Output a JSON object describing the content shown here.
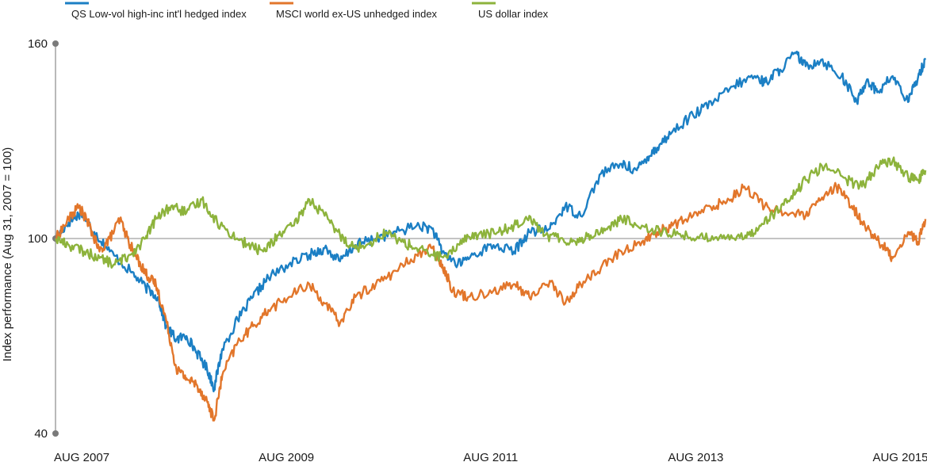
{
  "chart_data": {
    "type": "line",
    "title": "",
    "xlabel": "",
    "ylabel": "Index performance (Aug 31, 2007 = 100)",
    "ylim": [
      40,
      160
    ],
    "yticks": [
      40,
      100,
      160
    ],
    "xlim": [
      2007.67,
      2016.17
    ],
    "xticks": [
      {
        "label": "AUG 2007",
        "x": 2007.67
      },
      {
        "label": "AUG 2009",
        "x": 2009.67
      },
      {
        "label": "AUG 2011",
        "x": 2011.67
      },
      {
        "label": "AUG 2013",
        "x": 2013.67
      },
      {
        "label": "AUG 2015",
        "x": 2015.67
      }
    ],
    "reference_line": 100,
    "grid": false,
    "legend_position": "top-left",
    "series": [
      {
        "name": "QS Low-vol high-inc int'l hedged index",
        "color": "#1b7fc4",
        "x": [
          2007.67,
          2007.8,
          2007.92,
          2008.05,
          2008.2,
          2008.4,
          2008.55,
          2008.67,
          2008.75,
          2008.85,
          2008.95,
          2009.05,
          2009.15,
          2009.22,
          2009.3,
          2009.45,
          2009.6,
          2009.75,
          2009.95,
          2010.15,
          2010.3,
          2010.45,
          2010.6,
          2010.8,
          2011.0,
          2011.2,
          2011.35,
          2011.45,
          2011.6,
          2011.75,
          2011.95,
          2012.15,
          2012.3,
          2012.5,
          2012.65,
          2012.8,
          2013.0,
          2013.2,
          2013.35,
          2013.45,
          2013.55,
          2013.7,
          2013.9,
          2014.1,
          2014.3,
          2014.5,
          2014.6,
          2014.75,
          2014.9,
          2015.0,
          2015.15,
          2015.35,
          2015.5,
          2015.6,
          2015.7,
          2015.85,
          2016.0,
          2016.1,
          2016.17
        ],
        "values": [
          100,
          105,
          108,
          102,
          96,
          90,
          85,
          82,
          73,
          69,
          70,
          65,
          60,
          54,
          66,
          75,
          82,
          88,
          92,
          95,
          97,
          93,
          98,
          100,
          102,
          104,
          103,
          96,
          92,
          95,
          98,
          96,
          102,
          103,
          110,
          107,
          120,
          123,
          121,
          125,
          128,
          133,
          138,
          142,
          147,
          150,
          148,
          152,
          157,
          153,
          155,
          150,
          142,
          149,
          145,
          150,
          142,
          150,
          155
        ]
      },
      {
        "name": "MSCI world ex-US unhedged index",
        "color": "#e2762b",
        "x": [
          2007.67,
          2007.8,
          2007.9,
          2008.0,
          2008.1,
          2008.2,
          2008.3,
          2008.4,
          2008.5,
          2008.58,
          2008.65,
          2008.75,
          2008.85,
          2008.95,
          2009.05,
          2009.15,
          2009.22,
          2009.3,
          2009.45,
          2009.6,
          2009.75,
          2009.95,
          2010.15,
          2010.3,
          2010.45,
          2010.6,
          2010.8,
          2011.0,
          2011.2,
          2011.35,
          2011.45,
          2011.55,
          2011.7,
          2011.95,
          2012.15,
          2012.3,
          2012.5,
          2012.65,
          2012.8,
          2013.0,
          2013.2,
          2013.4,
          2013.55,
          2013.7,
          2013.9,
          2014.1,
          2014.25,
          2014.4,
          2014.6,
          2014.8,
          2015.0,
          2015.15,
          2015.3,
          2015.45,
          2015.6,
          2015.75,
          2015.85,
          2016.0,
          2016.1,
          2016.17
        ],
        "values": [
          100,
          106,
          110,
          104,
          96,
          100,
          106,
          98,
          92,
          88,
          86,
          75,
          60,
          57,
          55,
          50,
          44,
          58,
          68,
          73,
          78,
          82,
          86,
          80,
          74,
          82,
          86,
          90,
          95,
          97,
          92,
          84,
          82,
          84,
          86,
          82,
          87,
          80,
          86,
          91,
          96,
          99,
          102,
          104,
          107,
          110,
          112,
          116,
          110,
          108,
          107,
          112,
          116,
          110,
          103,
          98,
          94,
          102,
          99,
          106
        ]
      },
      {
        "name": "US dollar index",
        "color": "#8db33c",
        "x": [
          2007.67,
          2007.8,
          2007.95,
          2008.1,
          2008.25,
          2008.4,
          2008.55,
          2008.65,
          2008.8,
          2008.95,
          2009.1,
          2009.25,
          2009.4,
          2009.55,
          2009.7,
          2009.85,
          2010.0,
          2010.15,
          2010.3,
          2010.45,
          2010.6,
          2010.75,
          2010.9,
          2011.05,
          2011.2,
          2011.35,
          2011.5,
          2011.65,
          2011.8,
          2012.0,
          2012.15,
          2012.3,
          2012.45,
          2012.6,
          2012.75,
          2012.9,
          2013.05,
          2013.2,
          2013.4,
          2013.6,
          2013.8,
          2014.0,
          2014.2,
          2014.4,
          2014.55,
          2014.7,
          2014.85,
          2015.0,
          2015.2,
          2015.4,
          2015.55,
          2015.7,
          2015.85,
          2016.0,
          2016.1,
          2016.17
        ],
        "values": [
          100,
          98,
          96,
          94,
          92,
          95,
          100,
          106,
          110,
          108,
          112,
          105,
          101,
          98,
          96,
          101,
          104,
          112,
          107,
          101,
          97,
          99,
          102,
          99,
          97,
          95,
          94,
          100,
          101,
          102,
          104,
          107,
          101,
          100,
          99,
          101,
          103,
          106,
          104,
          102,
          101,
          100,
          101,
          100,
          104,
          108,
          112,
          118,
          123,
          118,
          116,
          122,
          124,
          119,
          118,
          121
        ]
      }
    ]
  }
}
